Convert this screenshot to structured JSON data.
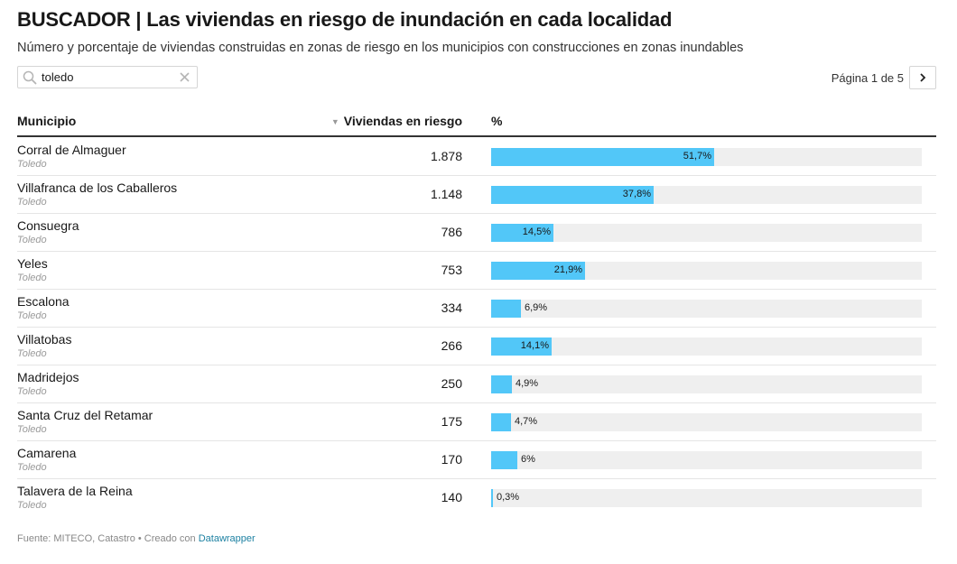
{
  "header": {
    "title": "BUSCADOR | Las viviendas en riesgo de inundación en cada localidad",
    "subtitle": "Número y porcentaje de viviendas construidas en zonas de riesgo en los municipios con construcciones en zonas inundables"
  },
  "search": {
    "value": "toledo",
    "icon": "search-icon",
    "clear_icon": "close-icon"
  },
  "pagination": {
    "label": "Página 1 de 5",
    "next_icon": "chevron-right-icon"
  },
  "colors": {
    "bar": "#52c7f8",
    "track": "#efefef",
    "link": "#1d81a2"
  },
  "chart_data": {
    "type": "table",
    "columns": [
      "Municipio",
      "Viviendas en riesgo",
      "%"
    ],
    "sort": {
      "column": "Viviendas en riesgo",
      "direction": "desc"
    },
    "pct_range": [
      0,
      100
    ],
    "rows": [
      {
        "municipio": "Corral de Almaguer",
        "provincia": "Toledo",
        "viviendas": "1.878",
        "pct": 51.7,
        "pct_label": "51,7%"
      },
      {
        "municipio": "Villafranca de los Caballeros",
        "provincia": "Toledo",
        "viviendas": "1.148",
        "pct": 37.8,
        "pct_label": "37,8%"
      },
      {
        "municipio": "Consuegra",
        "provincia": "Toledo",
        "viviendas": "786",
        "pct": 14.5,
        "pct_label": "14,5%"
      },
      {
        "municipio": "Yeles",
        "provincia": "Toledo",
        "viviendas": "753",
        "pct": 21.9,
        "pct_label": "21,9%"
      },
      {
        "municipio": "Escalona",
        "provincia": "Toledo",
        "viviendas": "334",
        "pct": 6.9,
        "pct_label": "6,9%"
      },
      {
        "municipio": "Villatobas",
        "provincia": "Toledo",
        "viviendas": "266",
        "pct": 14.1,
        "pct_label": "14,1%"
      },
      {
        "municipio": "Madridejos",
        "provincia": "Toledo",
        "viviendas": "250",
        "pct": 4.9,
        "pct_label": "4,9%"
      },
      {
        "municipio": "Santa Cruz del Retamar",
        "provincia": "Toledo",
        "viviendas": "175",
        "pct": 4.7,
        "pct_label": "4,7%"
      },
      {
        "municipio": "Camarena",
        "provincia": "Toledo",
        "viviendas": "170",
        "pct": 6,
        "pct_label": "6%"
      },
      {
        "municipio": "Talavera de la Reina",
        "provincia": "Toledo",
        "viviendas": "140",
        "pct": 0.3,
        "pct_label": "0,3%"
      }
    ]
  },
  "footer": {
    "source": "Fuente: MITECO, Catastro • Creado con ",
    "link": "Datawrapper"
  }
}
